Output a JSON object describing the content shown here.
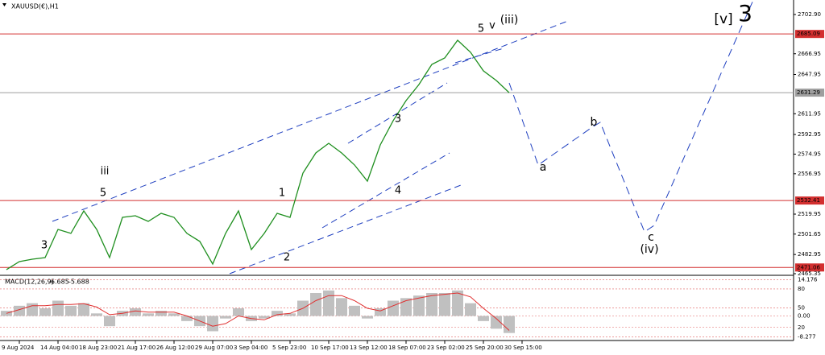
{
  "chart_data": [
    {
      "type": "line",
      "title": "XAUUSD(€),H1",
      "categories": [
        null,
        "9 Aug 2024",
        null,
        null,
        "14 Aug 04:00",
        null,
        null,
        "18 Aug 23:00",
        null,
        null,
        "21 Aug 17:00",
        null,
        null,
        "26 Aug 12:00",
        null,
        null,
        "29 Aug 07:00",
        null,
        null,
        "3 Sep 04:00",
        null,
        null,
        "5 Sep 23:00",
        null,
        null,
        "10 Sep 17:00",
        null,
        null,
        "13 Sep 12:00",
        null,
        null,
        "18 Sep 07:00",
        null,
        null,
        "23 Sep 02:00",
        null,
        null,
        "25 Sep 20:00",
        null,
        null,
        "30 Sep 15:00",
        null,
        null,
        null,
        null,
        null,
        null,
        null,
        null,
        null,
        null,
        null,
        null,
        null,
        null,
        null,
        null,
        null,
        null,
        null,
        null
      ],
      "values": [
        2469.1,
        2476.4,
        2478.6,
        2480.1,
        2505.9,
        2502.3,
        2522.9,
        2505.9,
        2480.1,
        2517.0,
        2518.5,
        2513.3,
        2520.7,
        2517.0,
        2502.3,
        2494.9,
        2474.2,
        2502.3,
        2522.9,
        2487.5,
        2502.3,
        2520.7,
        2517.0,
        2557.6,
        2576.0,
        2584.9,
        2576.0,
        2565.0,
        2550.2,
        2583.4,
        2605.6,
        2624.0,
        2638.7,
        2657.2,
        2663.1,
        2679.3,
        2668.3,
        2651.3,
        2642.4,
        2631.29,
        null,
        null,
        null,
        null,
        null,
        null,
        null,
        null,
        null,
        null,
        null,
        null,
        null,
        null,
        null,
        null,
        null,
        null,
        null,
        null,
        null
      ],
      "color": "#1f8f1f",
      "ylim": [
        2465.35,
        2716.2
      ],
      "yticks": [
        {
          "value": 2702.9,
          "label": "2702.90"
        },
        2666.95,
        2647.95,
        2611.95,
        2592.95,
        2574.95,
        2556.95,
        2519.95,
        2501.65,
        2482.95,
        2465.35
      ],
      "levels": [
        {
          "value": 2685.09,
          "color": "#d32f2f"
        },
        {
          "value": 2631.29,
          "color": "#9e9e9e"
        },
        {
          "value": 2532.41,
          "color": "#d32f2f"
        },
        {
          "value": 2471.06,
          "color": "#d32f2f"
        }
      ],
      "annotations": [
        {
          "text": "3",
          "color": "#000000"
        },
        {
          "text": "5",
          "color": "#000000"
        },
        {
          "text": "iii",
          "color": "#e040fb"
        },
        {
          "text": "1",
          "color": "#000000"
        },
        {
          "text": "2",
          "color": "#000000"
        },
        {
          "text": "3",
          "color": "#000000"
        },
        {
          "text": "4",
          "color": "#000000"
        },
        {
          "text": "5",
          "color": "#000000"
        },
        {
          "text": "v",
          "color": "#e040fb"
        },
        {
          "text": "(iii)",
          "color": "#3030c0"
        },
        {
          "text": "a",
          "color": "#e040fb"
        },
        {
          "text": "b",
          "color": "#e040fb"
        },
        {
          "text": "c",
          "color": "#e040fb"
        },
        {
          "text": "(iv)",
          "color": "#3030c0"
        },
        {
          "text": "[v]",
          "color": "#2e8b2e"
        },
        {
          "text": "3",
          "color": "#e00000"
        }
      ]
    },
    {
      "type": "macd",
      "title": "MACD(12,26,9)",
      "ylim": [
        -9,
        15
      ],
      "yticks": [
        14.176,
        {
          "value": 10.6,
          "label": "80"
        },
        {
          "value": 3.1,
          "label": "50"
        },
        {
          "value": 0,
          "label": "0.00"
        },
        {
          "value": -4.5,
          "label": "20"
        },
        -8.277
      ],
      "series": [
        {
          "type": "bar",
          "color": "#c0c0c0",
          "values": [
            2,
            4,
            5,
            3,
            6,
            4,
            5,
            1,
            -4,
            2,
            3,
            1,
            2,
            1,
            -2,
            -4,
            -6,
            -1,
            3,
            -2,
            -1,
            2,
            1,
            6,
            9,
            10,
            7,
            4,
            -1,
            3,
            6,
            7,
            8,
            9,
            9,
            10,
            5,
            -2,
            -5,
            -6.685,
            null,
            null,
            null,
            null,
            null,
            null,
            null,
            null,
            null,
            null,
            null,
            null,
            null,
            null,
            null,
            null,
            null,
            null,
            null,
            null,
            null
          ]
        },
        {
          "type": "line",
          "color": "#e03030",
          "values": [
            1,
            2.5,
            4,
            4,
            4.5,
            4.5,
            4.8,
            3.5,
            0.5,
            1,
            2,
            1.5,
            1.5,
            1.5,
            0,
            -2,
            -4,
            -3,
            0,
            -1,
            -1.5,
            0.5,
            1,
            3,
            6,
            8,
            8,
            6,
            3,
            2,
            4,
            6,
            7,
            8,
            8.5,
            9,
            7.5,
            3,
            -1,
            -5.688,
            null,
            null,
            null,
            null,
            null,
            null,
            null,
            null,
            null,
            null,
            null,
            null,
            null,
            null,
            null,
            null,
            null,
            null,
            null,
            null,
            null
          ]
        }
      ]
    }
  ]
}
